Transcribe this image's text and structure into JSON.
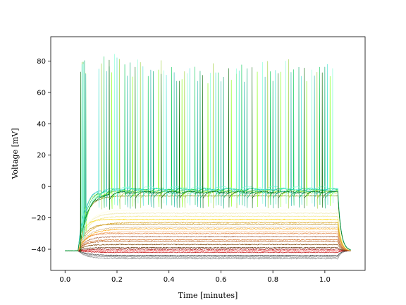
{
  "chart_data": {
    "type": "line",
    "title": "",
    "xlabel": "Time [minutes]",
    "ylabel": "Voltage [mV]",
    "xlim": [
      -0.055,
      1.155
    ],
    "ylim": [
      -53.5,
      95.5
    ],
    "xticks": [
      0.0,
      0.2,
      0.4,
      0.6,
      0.8,
      1.0
    ],
    "xtick_labels": [
      "0.0",
      "0.2",
      "0.4",
      "0.6",
      "0.8",
      "1.0"
    ],
    "yticks": [
      -40,
      -20,
      0,
      20,
      40,
      60,
      80
    ],
    "ytick_labels": [
      "−40",
      "−20",
      "0",
      "20",
      "40",
      "60",
      "80"
    ],
    "grid": false,
    "legend": "none",
    "stimulus": {
      "onset": 0.05,
      "offset": 1.05,
      "baseline": -41
    },
    "series": [
      {
        "color": "#808080",
        "plateau": -46,
        "spikes": []
      },
      {
        "color": "#999999",
        "plateau": -45,
        "spikes": []
      },
      {
        "color": "#b0b0b0",
        "plateau": -44.5,
        "spikes": []
      },
      {
        "color": "#333333",
        "plateau": -44,
        "spikes": []
      },
      {
        "color": "#c00000",
        "plateau": -42,
        "spikes": []
      },
      {
        "color": "#e00000",
        "plateau": -41,
        "spikes": []
      },
      {
        "color": "#a00000",
        "plateau": -40,
        "spikes": []
      },
      {
        "color": "#5a2a00",
        "plateau": -39,
        "spikes": []
      },
      {
        "color": "#7b3f00",
        "plateau": -37,
        "spikes": []
      },
      {
        "color": "#b05a1a",
        "plateau": -35,
        "spikes": []
      },
      {
        "color": "#d2691e",
        "plateau": -34,
        "spikes": []
      },
      {
        "color": "#a0522d",
        "plateau": -32,
        "spikes": []
      },
      {
        "color": "#e08040",
        "plateau": -30,
        "spikes": []
      },
      {
        "color": "#f4a460",
        "plateau": -29,
        "spikes": []
      },
      {
        "color": "#ffa500",
        "plateau": -27,
        "spikes": []
      },
      {
        "color": "#d2b48c",
        "plateau": -26,
        "spikes": []
      },
      {
        "color": "#b8860b",
        "plateau": -24,
        "spikes": []
      },
      {
        "color": "#daa520",
        "plateau": -23,
        "spikes": []
      },
      {
        "color": "#ffd700",
        "plateau": -21,
        "spikes": []
      },
      {
        "color": "#f0e68c",
        "plateau": -19,
        "spikes": []
      },
      {
        "color": "#eee8aa",
        "plateau": -17,
        "spikes": []
      },
      {
        "color": "#ffffe0",
        "plateau": -15,
        "spikes": []
      },
      {
        "color": "#808000",
        "plateau": -6,
        "spikes": []
      },
      {
        "color": "#7fff00",
        "plateau": -3,
        "spikes": [
          0.08,
          0.18,
          0.26,
          0.36,
          0.45,
          0.55,
          0.64,
          0.74,
          0.83,
          0.93,
          1.02
        ]
      },
      {
        "color": "#9acd32",
        "plateau": -4,
        "spikes": [
          0.065,
          0.14,
          0.21,
          0.29,
          0.37,
          0.46,
          0.57,
          0.66,
          0.78,
          0.86,
          0.97
        ]
      },
      {
        "color": "#00c853",
        "plateau": -2,
        "spikes": [
          0.07,
          0.15,
          0.23,
          0.32,
          0.41,
          0.5,
          0.59,
          0.68,
          0.79,
          0.88,
          0.98
        ]
      },
      {
        "color": "#00a86b",
        "plateau": -4,
        "spikes": [
          0.075,
          0.17,
          0.25,
          0.34,
          0.43,
          0.52,
          0.61,
          0.7,
          0.8,
          0.9,
          1.0
        ]
      },
      {
        "color": "#20b2aa",
        "plateau": -3,
        "spikes": [
          0.08,
          0.16,
          0.24,
          0.33,
          0.42,
          0.51,
          0.6,
          0.69,
          0.77,
          0.87,
          0.96
        ]
      },
      {
        "color": "#7fffd4",
        "plateau": -1,
        "spikes": [
          0.07,
          0.19,
          0.28,
          0.38,
          0.47,
          0.56,
          0.66,
          0.76,
          0.85,
          0.95,
          1.03
        ]
      },
      {
        "color": "#40e0d0",
        "plateau": -2,
        "spikes": [
          0.065,
          0.13,
          0.2,
          0.3,
          0.39,
          0.48,
          0.58,
          0.67,
          0.81,
          0.91,
          1.01
        ]
      },
      {
        "color": "#006400",
        "plateau": -4,
        "spikes": [
          0.06,
          0.17,
          0.27,
          0.37,
          0.44,
          0.53,
          0.63,
          0.72,
          0.82,
          0.92,
          0.99
        ]
      }
    ]
  }
}
